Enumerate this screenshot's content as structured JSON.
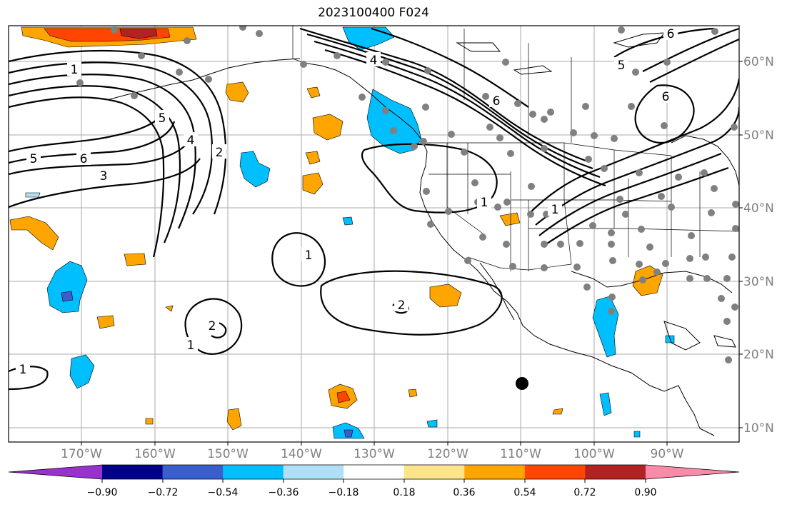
{
  "title": "2023100400 F024",
  "lon_labels": [
    "170°W",
    "160°W",
    "150°W",
    "140°W",
    "130°W",
    "120°W",
    "110°W",
    "100°W",
    "90°W"
  ],
  "lat_labels": [
    "60°N",
    "50°N",
    "40°N",
    "30°N",
    "20°N",
    "10°N"
  ],
  "colorbar": {
    "colors": [
      "#9932cc",
      "#00008b",
      "#3a5fcd",
      "#00bfff",
      "#afe0f7",
      "#ffffff",
      "#fbe48a",
      "#ffa500",
      "#ff4500",
      "#b22222",
      "#f88ba8"
    ],
    "ticks": [
      "−0.90",
      "−0.72",
      "−0.54",
      "−0.36",
      "−0.18",
      "0.18",
      "0.36",
      "0.54",
      "0.72",
      "0.90"
    ]
  },
  "contour_labels": [
    "1",
    "5",
    "4",
    "2",
    "6",
    "5",
    "6",
    "3",
    "4",
    "6",
    "5",
    "6",
    "1",
    "1",
    "1",
    "2",
    "2",
    "1",
    "1"
  ]
}
